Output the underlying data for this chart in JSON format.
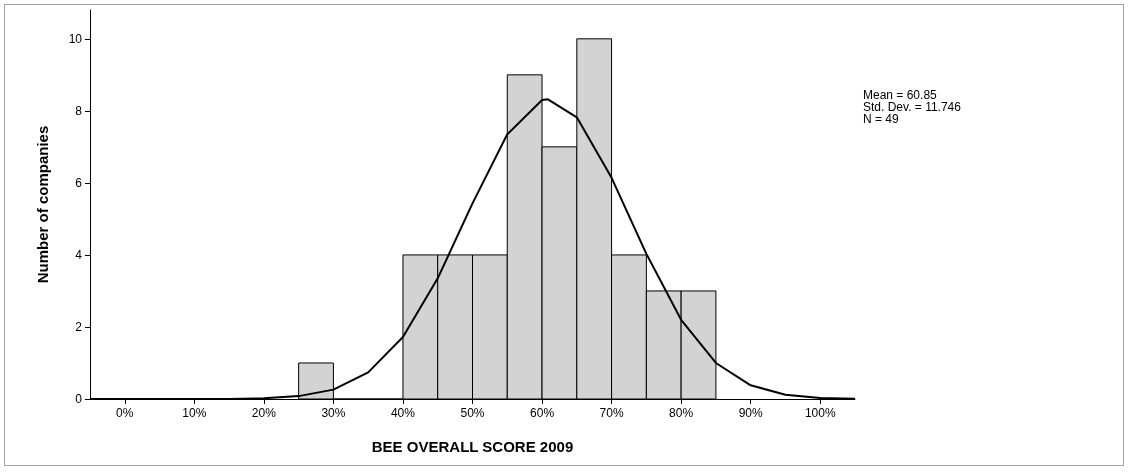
{
  "chart_data": {
    "type": "histogram",
    "xlabel": "BEE OVERALL SCORE 2009",
    "ylabel": "Number of companies",
    "annotations": [
      "Mean = 60.85",
      "Std. Dev. = 11.746",
      "N = 49"
    ],
    "series": [
      {
        "type": "histogram",
        "color": "#d3d3d3",
        "bins": [
          25,
          30,
          35,
          40,
          45,
          50,
          55,
          60,
          65,
          70,
          75,
          80,
          85
        ],
        "values": [
          1,
          0,
          0,
          4,
          4,
          4,
          9,
          7,
          10,
          4,
          3,
          3
        ]
      },
      {
        "type": "line",
        "color": "#000000",
        "x": [
          -5,
          0,
          5,
          10,
          15,
          20,
          25,
          30,
          35,
          40,
          45,
          50,
          55,
          60,
          60.85,
          65,
          70,
          75,
          80,
          85,
          90,
          95,
          100,
          105
        ],
        "values": [
          0,
          0,
          0,
          0,
          0,
          0.02,
          0.08,
          0.26,
          0.74,
          1.72,
          3.35,
          5.43,
          7.35,
          8.3,
          8.32,
          7.82,
          6.14,
          4.03,
          2.2,
          1,
          0.38,
          0.12,
          0.03,
          0.01
        ]
      }
    ],
    "xlim": [
      -5,
      105
    ],
    "xticks": [
      {
        "value": 0,
        "label": "0%"
      },
      {
        "value": 10,
        "label": "10%"
      },
      {
        "value": 20,
        "label": "20%"
      },
      {
        "value": 30,
        "label": "30%"
      },
      {
        "value": 40,
        "label": "40%"
      },
      {
        "value": 50,
        "label": "50%"
      },
      {
        "value": 60,
        "label": "60%"
      },
      {
        "value": 70,
        "label": "70%"
      },
      {
        "value": 80,
        "label": "80%"
      },
      {
        "value": 90,
        "label": "90%"
      },
      {
        "value": 100,
        "label": "100%"
      }
    ],
    "ylim": [
      0,
      10.8
    ],
    "yticks": [
      0,
      2,
      4,
      6,
      8,
      10
    ],
    "grid": false
  }
}
